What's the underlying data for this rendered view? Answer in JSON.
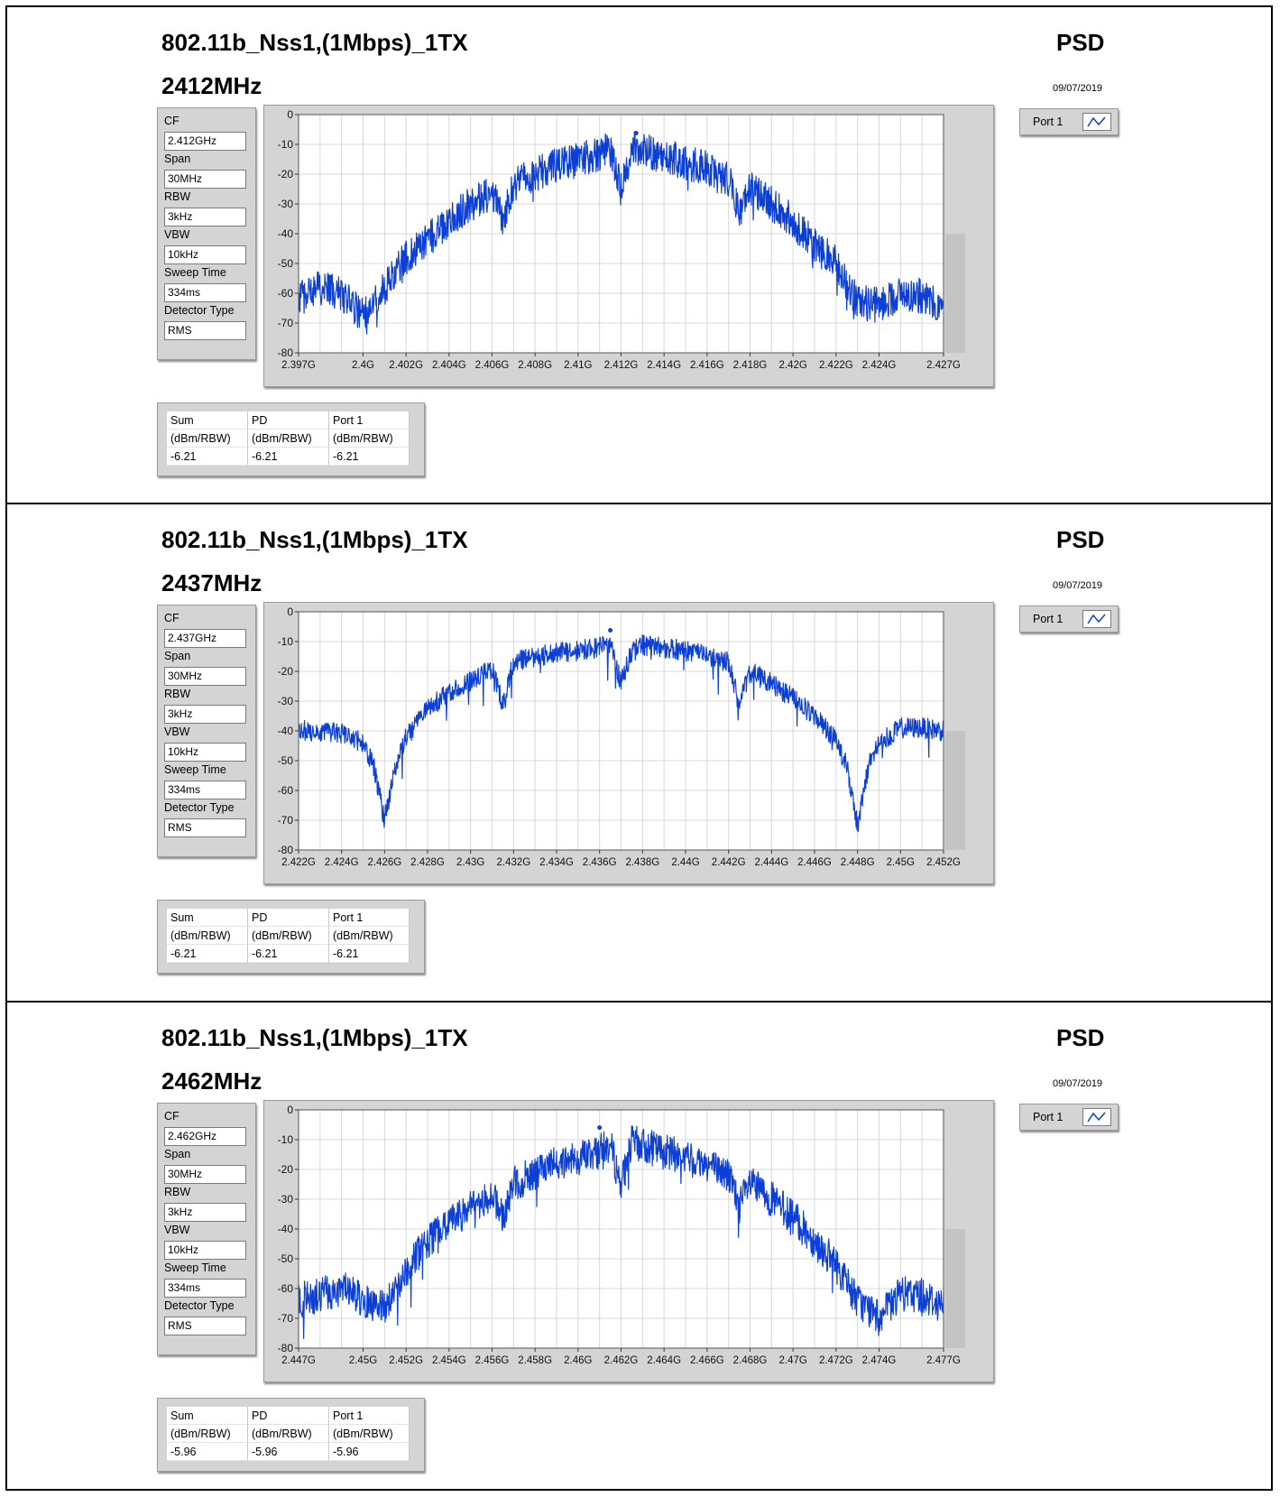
{
  "colors": {
    "trace": "#0b3fd6",
    "plot_bg": "#ffffff",
    "frame_bg": "#d4d4d4",
    "grid": "#d8d8d8"
  },
  "panels": [
    {
      "title": "802.11b_Nss1,(1Mbps)_1TX",
      "freq": "2412MHz",
      "psd": "PSD",
      "date": "09/07/2019",
      "params": [
        {
          "label": "CF",
          "value": "2.412GHz"
        },
        {
          "label": "Span",
          "value": "30MHz"
        },
        {
          "label": "RBW",
          "value": "3kHz"
        },
        {
          "label": "VBW",
          "value": "10kHz"
        },
        {
          "label": "Sweep Time",
          "value": "334ms"
        },
        {
          "label": "Detector Type",
          "value": "RMS"
        }
      ],
      "legend": {
        "label": "Port 1",
        "icon": "trace-line-icon"
      },
      "table": {
        "headers": [
          "Sum",
          "PD",
          "Port 1"
        ],
        "units": [
          "(dBm/RBW)",
          "(dBm/RBW)",
          "(dBm/RBW)"
        ],
        "values": [
          "-6.21",
          "-6.21",
          "-6.21"
        ]
      }
    },
    {
      "title": "802.11b_Nss1,(1Mbps)_1TX",
      "freq": "2437MHz",
      "psd": "PSD",
      "date": "09/07/2019",
      "params": [
        {
          "label": "CF",
          "value": "2.437GHz"
        },
        {
          "label": "Span",
          "value": "30MHz"
        },
        {
          "label": "RBW",
          "value": "3kHz"
        },
        {
          "label": "VBW",
          "value": "10kHz"
        },
        {
          "label": "Sweep Time",
          "value": "334ms"
        },
        {
          "label": "Detector Type",
          "value": "RMS"
        }
      ],
      "legend": {
        "label": "Port 1",
        "icon": "trace-line-icon"
      },
      "table": {
        "headers": [
          "Sum",
          "PD",
          "Port 1"
        ],
        "units": [
          "(dBm/RBW)",
          "(dBm/RBW)",
          "(dBm/RBW)"
        ],
        "values": [
          "-6.21",
          "-6.21",
          "-6.21"
        ]
      }
    },
    {
      "title": "802.11b_Nss1,(1Mbps)_1TX",
      "freq": "2462MHz",
      "psd": "PSD",
      "date": "09/07/2019",
      "params": [
        {
          "label": "CF",
          "value": "2.462GHz"
        },
        {
          "label": "Span",
          "value": "30MHz"
        },
        {
          "label": "RBW",
          "value": "3kHz"
        },
        {
          "label": "VBW",
          "value": "10kHz"
        },
        {
          "label": "Sweep Time",
          "value": "334ms"
        },
        {
          "label": "Detector Type",
          "value": "RMS"
        }
      ],
      "legend": {
        "label": "Port 1",
        "icon": "trace-line-icon"
      },
      "table": {
        "headers": [
          "Sum",
          "PD",
          "Port 1"
        ],
        "units": [
          "(dBm/RBW)",
          "(dBm/RBW)",
          "(dBm/RBW)"
        ],
        "values": [
          "-5.96",
          "-5.96",
          "-5.96"
        ]
      }
    }
  ],
  "chart_data": [
    {
      "type": "line",
      "ylim": [
        -80,
        0
      ],
      "xlim": [
        2.397,
        2.427
      ],
      "y_ticks": [
        "0",
        "-10",
        "-20",
        "-30",
        "-40",
        "-50",
        "-60",
        "-70",
        "-80"
      ],
      "x_ticks": [
        {
          "v": 2.397,
          "label": "2.397G"
        },
        {
          "v": 2.4,
          "label": "2.4G"
        },
        {
          "v": 2.402,
          "label": "2.402G"
        },
        {
          "v": 2.404,
          "label": "2.404G"
        },
        {
          "v": 2.406,
          "label": "2.406G"
        },
        {
          "v": 2.408,
          "label": "2.408G"
        },
        {
          "v": 2.41,
          "label": "2.41G"
        },
        {
          "v": 2.412,
          "label": "2.412G"
        },
        {
          "v": 2.414,
          "label": "2.414G"
        },
        {
          "v": 2.416,
          "label": "2.416G"
        },
        {
          "v": 2.418,
          "label": "2.418G"
        },
        {
          "v": 2.42,
          "label": "2.42G"
        },
        {
          "v": 2.422,
          "label": "2.422G"
        },
        {
          "v": 2.424,
          "label": "2.424G"
        },
        {
          "v": 2.427,
          "label": "2.427G"
        }
      ],
      "series": [
        {
          "name": "Port 1",
          "x": [
            2.397,
            2.398,
            2.399,
            2.4,
            2.401,
            2.402,
            2.403,
            2.404,
            2.405,
            2.406,
            2.4065,
            2.407,
            2.408,
            2.409,
            2.41,
            2.411,
            2.4115,
            2.412,
            2.4125,
            2.413,
            2.414,
            2.415,
            2.416,
            2.417,
            2.4175,
            2.418,
            2.419,
            2.42,
            2.421,
            2.422,
            2.423,
            2.424,
            2.425,
            2.426,
            2.427
          ],
          "y": [
            -62,
            -58,
            -60,
            -68,
            -58,
            -48,
            -42,
            -36,
            -30,
            -26,
            -35,
            -24,
            -20,
            -17,
            -15,
            -13,
            -12,
            -25,
            -11,
            -12,
            -14,
            -16,
            -18,
            -22,
            -32,
            -25,
            -30,
            -36,
            -44,
            -50,
            -63,
            -64,
            -60,
            -61,
            -66
          ]
        }
      ],
      "marker": {
        "x": 2.4127,
        "y": -6.21
      }
    },
    {
      "type": "line",
      "ylim": [
        -80,
        0
      ],
      "xlim": [
        2.422,
        2.452
      ],
      "y_ticks": [
        "0",
        "-10",
        "-20",
        "-30",
        "-40",
        "-50",
        "-60",
        "-70",
        "-80"
      ],
      "x_ticks": [
        {
          "v": 2.422,
          "label": "2.422G"
        },
        {
          "v": 2.424,
          "label": "2.424G"
        },
        {
          "v": 2.426,
          "label": "2.426G"
        },
        {
          "v": 2.428,
          "label": "2.428G"
        },
        {
          "v": 2.43,
          "label": "2.43G"
        },
        {
          "v": 2.432,
          "label": "2.432G"
        },
        {
          "v": 2.434,
          "label": "2.434G"
        },
        {
          "v": 2.436,
          "label": "2.436G"
        },
        {
          "v": 2.438,
          "label": "2.438G"
        },
        {
          "v": 2.44,
          "label": "2.44G"
        },
        {
          "v": 2.442,
          "label": "2.442G"
        },
        {
          "v": 2.444,
          "label": "2.444G"
        },
        {
          "v": 2.446,
          "label": "2.446G"
        },
        {
          "v": 2.448,
          "label": "2.448G"
        },
        {
          "v": 2.45,
          "label": "2.45G"
        },
        {
          "v": 2.452,
          "label": "2.452G"
        }
      ],
      "series": [
        {
          "name": "Port 1",
          "x": [
            2.422,
            2.423,
            2.424,
            2.425,
            2.4255,
            2.426,
            2.4265,
            2.427,
            2.428,
            2.429,
            2.43,
            2.431,
            2.4315,
            2.432,
            2.433,
            2.434,
            2.435,
            2.436,
            2.4365,
            2.437,
            2.4375,
            2.438,
            2.439,
            2.44,
            2.441,
            2.442,
            2.4425,
            2.443,
            2.444,
            2.445,
            2.446,
            2.447,
            2.4475,
            2.448,
            2.4485,
            2.449,
            2.45,
            2.451,
            2.452
          ],
          "y": [
            -40,
            -40,
            -41,
            -44,
            -52,
            -70,
            -52,
            -42,
            -33,
            -27,
            -23,
            -19,
            -31,
            -17,
            -15,
            -14,
            -13,
            -12,
            -11,
            -24,
            -13,
            -11,
            -12,
            -13,
            -15,
            -17,
            -31,
            -20,
            -24,
            -29,
            -35,
            -43,
            -52,
            -72,
            -52,
            -44,
            -39,
            -39,
            -40
          ]
        }
      ],
      "marker": {
        "x": 2.4365,
        "y": -6.21
      }
    },
    {
      "type": "line",
      "ylim": [
        -80,
        0
      ],
      "xlim": [
        2.447,
        2.477
      ],
      "y_ticks": [
        "0",
        "-10",
        "-20",
        "-30",
        "-40",
        "-50",
        "-60",
        "-70",
        "-80"
      ],
      "x_ticks": [
        {
          "v": 2.447,
          "label": "2.447G"
        },
        {
          "v": 2.45,
          "label": "2.45G"
        },
        {
          "v": 2.452,
          "label": "2.452G"
        },
        {
          "v": 2.454,
          "label": "2.454G"
        },
        {
          "v": 2.456,
          "label": "2.456G"
        },
        {
          "v": 2.458,
          "label": "2.458G"
        },
        {
          "v": 2.46,
          "label": "2.46G"
        },
        {
          "v": 2.462,
          "label": "2.462G"
        },
        {
          "v": 2.464,
          "label": "2.464G"
        },
        {
          "v": 2.466,
          "label": "2.466G"
        },
        {
          "v": 2.468,
          "label": "2.468G"
        },
        {
          "v": 2.47,
          "label": "2.47G"
        },
        {
          "v": 2.472,
          "label": "2.472G"
        },
        {
          "v": 2.474,
          "label": "2.474G"
        },
        {
          "v": 2.477,
          "label": "2.477G"
        }
      ],
      "series": [
        {
          "name": "Port 1",
          "x": [
            2.447,
            2.448,
            2.449,
            2.45,
            2.451,
            2.452,
            2.453,
            2.454,
            2.455,
            2.456,
            2.4565,
            2.457,
            2.458,
            2.459,
            2.46,
            2.461,
            2.4615,
            2.462,
            2.4625,
            2.463,
            2.464,
            2.465,
            2.466,
            2.467,
            2.4675,
            2.468,
            2.469,
            2.47,
            2.471,
            2.472,
            2.473,
            2.474,
            2.475,
            2.476,
            2.477
          ],
          "y": [
            -64,
            -62,
            -60,
            -64,
            -66,
            -54,
            -44,
            -38,
            -33,
            -28,
            -37,
            -25,
            -21,
            -18,
            -16,
            -14,
            -12,
            -25,
            -11,
            -12,
            -14,
            -16,
            -18,
            -22,
            -32,
            -25,
            -30,
            -36,
            -44,
            -52,
            -64,
            -70,
            -62,
            -62,
            -66
          ]
        }
      ],
      "marker": {
        "x": 2.461,
        "y": -5.96
      }
    }
  ]
}
